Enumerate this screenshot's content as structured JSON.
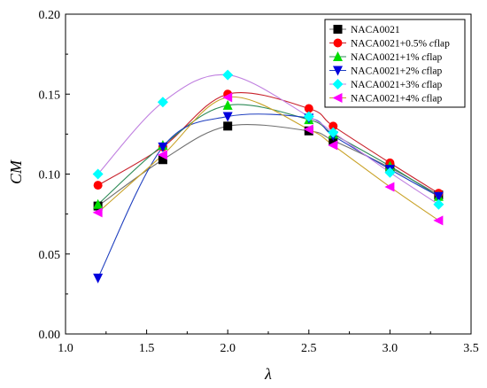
{
  "chart_data": {
    "type": "line",
    "xlabel": "λ",
    "ylabel": "CM",
    "xlim": [
      1.0,
      3.5
    ],
    "ylim": [
      0.0,
      0.2
    ],
    "x_ticks": [
      "1.0",
      "1.5",
      "2.0",
      "2.5",
      "3.0",
      "3.5"
    ],
    "y_ticks": [
      "0.00",
      "0.05",
      "0.10",
      "0.15",
      "0.20"
    ],
    "grid": false,
    "legend_position": "top-right",
    "x": [
      1.2,
      1.6,
      2.0,
      2.5,
      2.65,
      3.0,
      3.3
    ],
    "series": [
      {
        "name_parts": [
          "NACA0021"
        ],
        "marker": "square",
        "marker_color": "#000000",
        "line_color": "#707070",
        "values": [
          0.08,
          0.109,
          0.13,
          0.127,
          0.121,
          0.104,
          0.087
        ]
      },
      {
        "name_parts": [
          "NACA0021+0.5% ",
          "c",
          "flap"
        ],
        "marker": "circle",
        "marker_color": "#ff0000",
        "line_color": "#c8202a",
        "values": [
          0.093,
          0.117,
          0.15,
          0.141,
          0.13,
          0.107,
          0.088
        ]
      },
      {
        "name_parts": [
          "NACA0021+1% ",
          "c",
          "flap"
        ],
        "marker": "triangle-up",
        "marker_color": "#00dd00",
        "line_color": "#2e8b57",
        "values": [
          0.081,
          0.118,
          0.143,
          0.134,
          0.125,
          0.105,
          0.086
        ]
      },
      {
        "name_parts": [
          "NACA0021+2% ",
          "c",
          "flap"
        ],
        "marker": "triangle-down",
        "marker_color": "#0000dd",
        "line_color": "#1f3fbf",
        "values": [
          0.035,
          0.117,
          0.136,
          0.135,
          0.124,
          0.103,
          0.086
        ]
      },
      {
        "name_parts": [
          "NACA0021+3% ",
          "c",
          "flap"
        ],
        "marker": "diamond",
        "marker_color": "#00ffff",
        "line_color": "#c080e0",
        "values": [
          0.1,
          0.145,
          0.162,
          0.136,
          0.126,
          0.101,
          0.081
        ]
      },
      {
        "name_parts": [
          "NACA0021+4% ",
          "c",
          "flap"
        ],
        "marker": "triangle-left",
        "marker_color": "#ff00ff",
        "line_color": "#c9a227",
        "values": [
          0.076,
          0.112,
          0.148,
          0.128,
          0.118,
          0.092,
          0.071
        ]
      }
    ]
  }
}
